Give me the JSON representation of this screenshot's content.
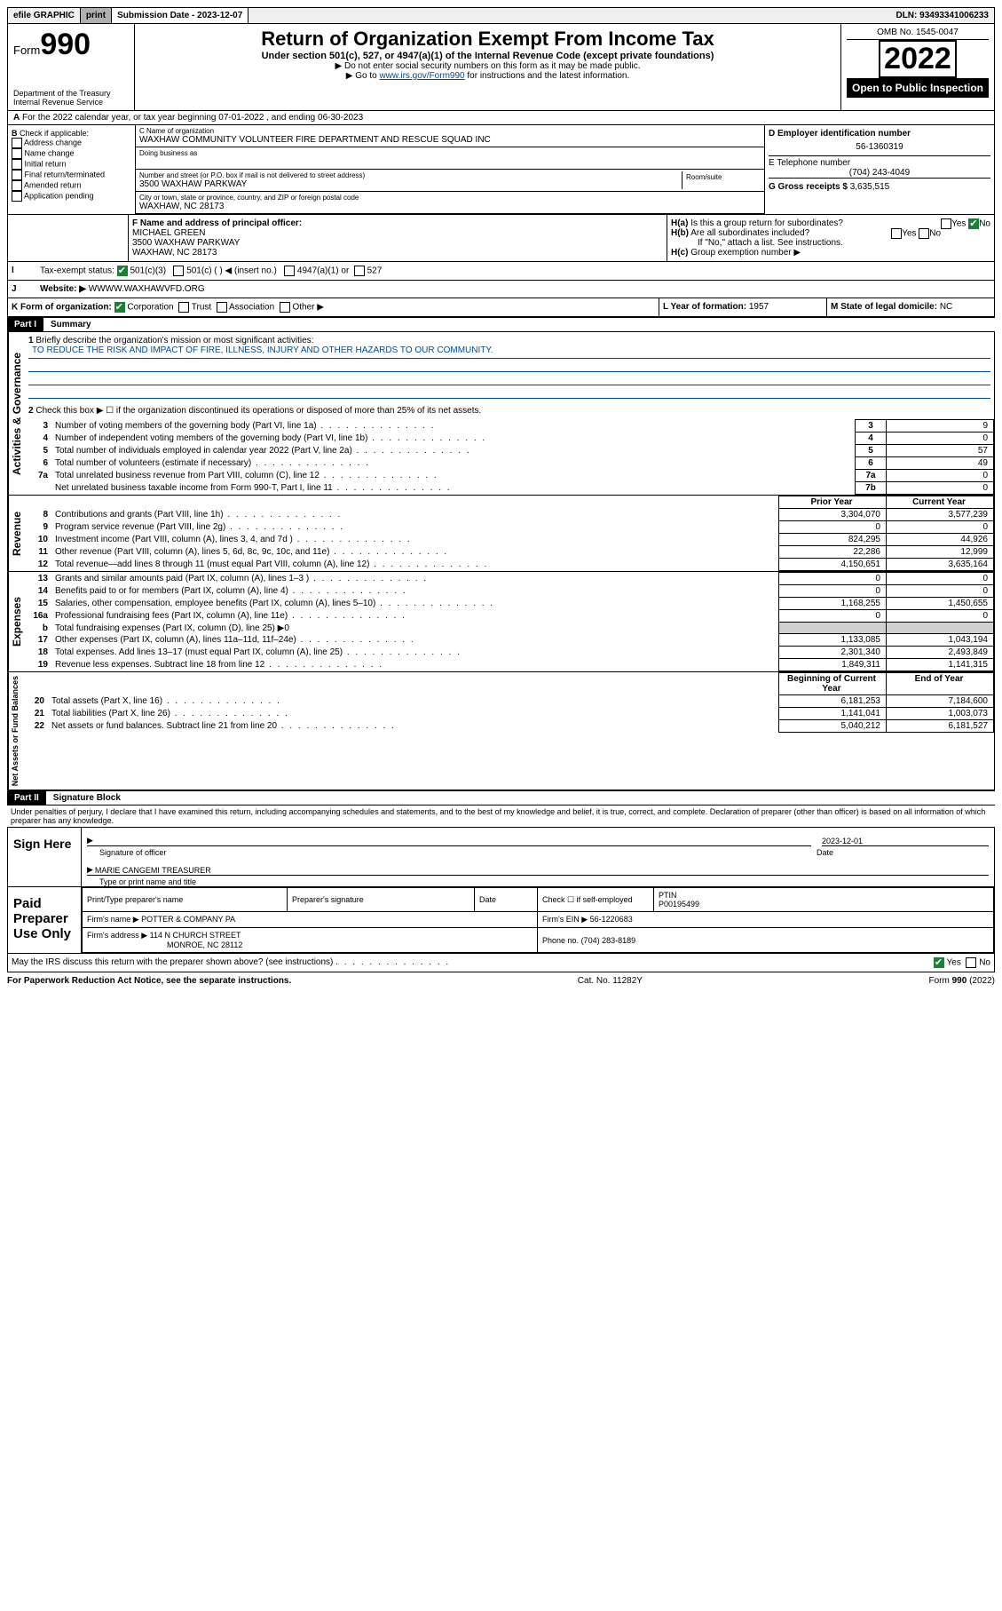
{
  "topbar": {
    "efile": "efile GRAPHIC",
    "print": "print",
    "subdate_label": "Submission Date - 2023-12-07",
    "dln": "DLN: 93493341006233"
  },
  "header": {
    "form_prefix": "Form",
    "form_number": "990",
    "dept": "Department of the Treasury",
    "irs": "Internal Revenue Service",
    "title": "Return of Organization Exempt From Income Tax",
    "subtitle": "Under section 501(c), 527, or 4947(a)(1) of the Internal Revenue Code (except private foundations)",
    "hint1": "▶ Do not enter social security numbers on this form as it may be made public.",
    "hint2_pre": "▶ Go to ",
    "hint2_link": "www.irs.gov/Form990",
    "hint2_post": " for instructions and the latest information.",
    "omb": "OMB No. 1545-0047",
    "year": "2022",
    "open": "Open to Public Inspection"
  },
  "A": {
    "line": "For the 2022 calendar year, or tax year beginning 07-01-2022   , and ending 06-30-2023"
  },
  "B": {
    "label": "Check if applicable:",
    "opts": [
      "Address change",
      "Name change",
      "Initial return",
      "Final return/terminated",
      "Amended return",
      "Application pending"
    ]
  },
  "C": {
    "name_label": "C Name of organization",
    "name": "WAXHAW COMMUNITY VOLUNTEER FIRE DEPARTMENT AND RESCUE SQUAD INC",
    "dba_label": "Doing business as",
    "addr_label": "Number and street (or P.O. box if mail is not delivered to street address)",
    "room_label": "Room/suite",
    "addr": "3500 WAXHAW PARKWAY",
    "city_label": "City or town, state or province, country, and ZIP or foreign postal code",
    "city": "WAXHAW, NC  28173"
  },
  "D": {
    "label": "D Employer identification number",
    "value": "56-1360319"
  },
  "E": {
    "label": "E Telephone number",
    "value": "(704) 243-4049"
  },
  "G": {
    "label": "G Gross receipts $",
    "value": "3,635,515"
  },
  "F": {
    "label": "F Name and address of principal officer:",
    "name": "MICHAEL GREEN",
    "addr1": "3500 WAXHAW PARKWAY",
    "addr2": "WAXHAW, NC  28173"
  },
  "H": {
    "a": "Is this a group return for subordinates?",
    "b": "Are all subordinates included?",
    "b_note": "If \"No,\" attach a list. See instructions.",
    "c": "Group exemption number ▶",
    "yes": "Yes",
    "no": "No"
  },
  "I": {
    "label": "Tax-exempt status:",
    "o1": "501(c)(3)",
    "o2": "501(c) (  ) ◀ (insert no.)",
    "o3": "4947(a)(1) or",
    "o4": "527"
  },
  "J": {
    "label": "Website: ▶",
    "value": "WWWW.WAXHAWVFD.ORG"
  },
  "K": {
    "label": "K Form of organization:",
    "opts": [
      "Corporation",
      "Trust",
      "Association",
      "Other ▶"
    ]
  },
  "L": {
    "label": "L Year of formation:",
    "value": "1957"
  },
  "M": {
    "label": "M State of legal domicile:",
    "value": "NC"
  },
  "part1": {
    "head": "Part I",
    "title": "Summary",
    "l1": "Briefly describe the organization's mission or most significant activities:",
    "mission": "TO REDUCE THE RISK AND IMPACT OF FIRE, ILLNESS, INJURY AND OTHER HAZARDS TO OUR COMMUNITY.",
    "l2": "Check this box ▶ ☐  if the organization discontinued its operations or disposed of more than 25% of its net assets.",
    "rows_gov": [
      {
        "n": "3",
        "d": "Number of voting members of the governing body (Part VI, line 1a)",
        "b": "3",
        "v": "9"
      },
      {
        "n": "4",
        "d": "Number of independent voting members of the governing body (Part VI, line 1b)",
        "b": "4",
        "v": "0"
      },
      {
        "n": "5",
        "d": "Total number of individuals employed in calendar year 2022 (Part V, line 2a)",
        "b": "5",
        "v": "57"
      },
      {
        "n": "6",
        "d": "Total number of volunteers (estimate if necessary)",
        "b": "6",
        "v": "49"
      },
      {
        "n": "7a",
        "d": "Total unrelated business revenue from Part VIII, column (C), line 12",
        "b": "7a",
        "v": "0"
      },
      {
        "n": "",
        "d": "Net unrelated business taxable income from Form 990-T, Part I, line 11",
        "b": "7b",
        "v": "0"
      }
    ],
    "col_prior": "Prior Year",
    "col_curr": "Current Year",
    "rows_rev": [
      {
        "n": "8",
        "d": "Contributions and grants (Part VIII, line 1h)",
        "p": "3,304,070",
        "c": "3,577,239"
      },
      {
        "n": "9",
        "d": "Program service revenue (Part VIII, line 2g)",
        "p": "0",
        "c": "0"
      },
      {
        "n": "10",
        "d": "Investment income (Part VIII, column (A), lines 3, 4, and 7d )",
        "p": "824,295",
        "c": "44,926"
      },
      {
        "n": "11",
        "d": "Other revenue (Part VIII, column (A), lines 5, 6d, 8c, 9c, 10c, and 11e)",
        "p": "22,286",
        "c": "12,999"
      },
      {
        "n": "12",
        "d": "Total revenue—add lines 8 through 11 (must equal Part VIII, column (A), line 12)",
        "p": "4,150,651",
        "c": "3,635,164"
      }
    ],
    "rows_exp": [
      {
        "n": "13",
        "d": "Grants and similar amounts paid (Part IX, column (A), lines 1–3 )",
        "p": "0",
        "c": "0"
      },
      {
        "n": "14",
        "d": "Benefits paid to or for members (Part IX, column (A), line 4)",
        "p": "0",
        "c": "0"
      },
      {
        "n": "15",
        "d": "Salaries, other compensation, employee benefits (Part IX, column (A), lines 5–10)",
        "p": "1,168,255",
        "c": "1,450,655"
      },
      {
        "n": "16a",
        "d": "Professional fundraising fees (Part IX, column (A), line 11e)",
        "p": "0",
        "c": "0"
      },
      {
        "n": "b",
        "d": "Total fundraising expenses (Part IX, column (D), line 25) ▶0",
        "p": "",
        "c": "",
        "shade": true
      },
      {
        "n": "17",
        "d": "Other expenses (Part IX, column (A), lines 11a–11d, 11f–24e)",
        "p": "1,133,085",
        "c": "1,043,194"
      },
      {
        "n": "18",
        "d": "Total expenses. Add lines 13–17 (must equal Part IX, column (A), line 25)",
        "p": "2,301,340",
        "c": "2,493,849"
      },
      {
        "n": "19",
        "d": "Revenue less expenses. Subtract line 18 from line 12",
        "p": "1,849,311",
        "c": "1,141,315"
      }
    ],
    "col_beg": "Beginning of Current Year",
    "col_end": "End of Year",
    "rows_net": [
      {
        "n": "20",
        "d": "Total assets (Part X, line 16)",
        "p": "6,181,253",
        "c": "7,184,600"
      },
      {
        "n": "21",
        "d": "Total liabilities (Part X, line 26)",
        "p": "1,141,041",
        "c": "1,003,073"
      },
      {
        "n": "22",
        "d": "Net assets or fund balances. Subtract line 21 from line 20",
        "p": "5,040,212",
        "c": "6,181,527"
      }
    ],
    "tab_gov": "Activities & Governance",
    "tab_rev": "Revenue",
    "tab_exp": "Expenses",
    "tab_net": "Net Assets or Fund Balances"
  },
  "part2": {
    "head": "Part II",
    "title": "Signature Block",
    "decl": "Under penalties of perjury, I declare that I have examined this return, including accompanying schedules and statements, and to the best of my knowledge and belief, it is true, correct, and complete. Declaration of preparer (other than officer) is based on all information of which preparer has any knowledge.",
    "sign_here": "Sign Here",
    "sig_officer": "Signature of officer",
    "date_label": "Date",
    "date": "2023-12-01",
    "name_title": "MARIE CANGEMI TREASURER",
    "name_title_label": "Type or print name and title",
    "paid": "Paid Preparer Use Only",
    "pp_name": "Print/Type preparer's name",
    "pp_sig": "Preparer's signature",
    "pp_date": "Date",
    "pp_check": "Check ☐ if self-employed",
    "ptin_label": "PTIN",
    "ptin": "P00195499",
    "firm_name_l": "Firm's name    ▶",
    "firm_name": "POTTER & COMPANY PA",
    "firm_ein_l": "Firm's EIN ▶",
    "firm_ein": "56-1220683",
    "firm_addr_l": "Firm's address ▶",
    "firm_addr1": "114 N CHURCH STREET",
    "firm_addr2": "MONROE, NC  28112",
    "phone_l": "Phone no.",
    "phone": "(704) 283-8189",
    "may": "May the IRS discuss this return with the preparer shown above? (see instructions)",
    "yes": "Yes",
    "no": "No"
  },
  "footer": {
    "left": "For Paperwork Reduction Act Notice, see the separate instructions.",
    "mid": "Cat. No. 11282Y",
    "right": "Form 990 (2022)"
  }
}
